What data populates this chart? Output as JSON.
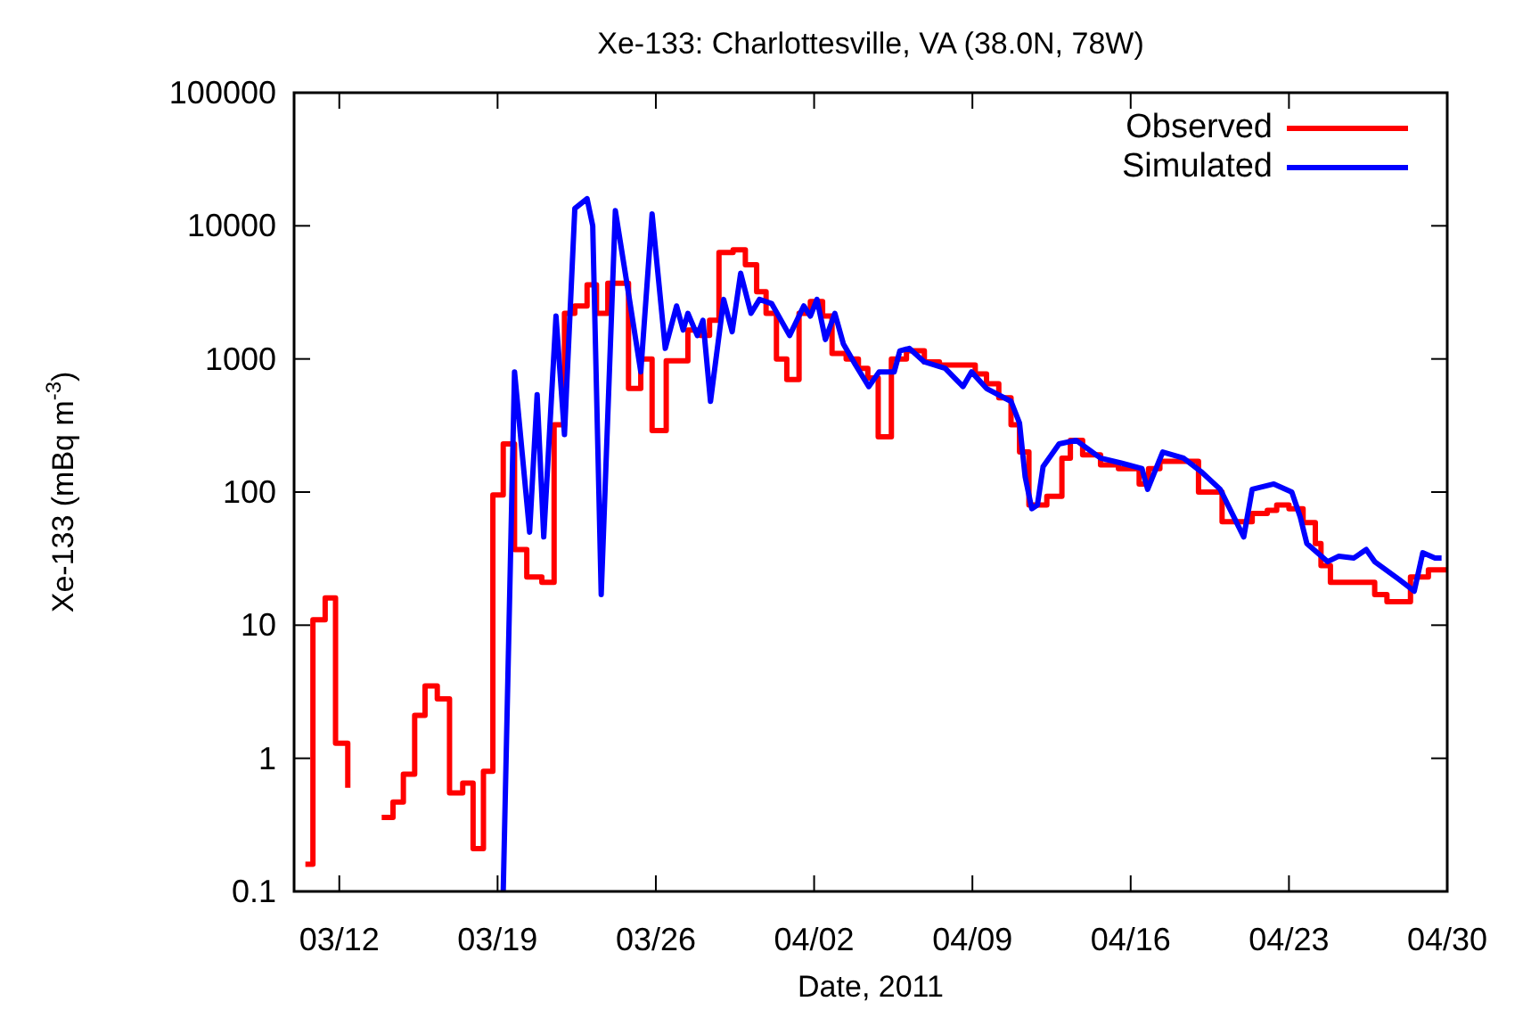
{
  "chart_data": {
    "type": "line",
    "title": "Xe-133: Charlottesville,  VA (38.0N, 78W)",
    "xlabel": "Date, 2011",
    "ylabel": "Xe-133 (mBq m$^{-3}$)",
    "log": "y",
    "grid": false,
    "legend": "top right",
    "marker": "none",
    "line_style": "solid",
    "xlim": [
      "2011-03-10",
      "2011-04-30"
    ],
    "xticks": [
      {
        "value": "2011-03-12",
        "label": "03/12"
      },
      {
        "value": "2011-03-19",
        "label": "03/19"
      },
      {
        "value": "2011-03-26",
        "label": "03/26"
      },
      {
        "value": "2011-04-02",
        "label": "04/02"
      },
      {
        "value": "2011-04-09",
        "label": "04/09"
      },
      {
        "value": "2011-04-16",
        "label": "04/16"
      },
      {
        "value": "2011-04-23",
        "label": "04/23"
      },
      {
        "value": "2011-04-30",
        "label": "04/30"
      }
    ],
    "ylim": [
      0.1,
      100000
    ],
    "yticks": [
      0.1,
      1,
      10,
      100,
      1000,
      10000,
      100000
    ],
    "series": [
      {
        "name": "Observed",
        "type": "step",
        "color": "#ff0000",
        "x": [
          "2011-03-10T12:00",
          "2011-03-10T20:00",
          "2011-03-11T09:00",
          "2011-03-11T20:00",
          "2011-03-12T09:00",
          "2011-03-12T22:00",
          "2011-03-13T21:00",
          "2011-03-14T09:00",
          "2011-03-14T20:00",
          "2011-03-15T08:00",
          "2011-03-15T19:00",
          "2011-03-16T08:00",
          "2011-03-16T21:00",
          "2011-03-17T11:00",
          "2011-03-17T22:00",
          "2011-03-18T09:00",
          "2011-03-18T19:00",
          "2011-03-19T06:00",
          "2011-03-19T18:00",
          "2011-03-20T07:00",
          "2011-03-20T23:00",
          "2011-03-21T12:00",
          "2011-03-21T23:00",
          "2011-03-22T10:00",
          "2011-03-22T23:00",
          "2011-03-23T09:00",
          "2011-03-23T21:00",
          "2011-03-24T19:00",
          "2011-03-25T08:00",
          "2011-03-25T20:00",
          "2011-03-26T11:00",
          "2011-03-27T10:00",
          "2011-03-27T23:00",
          "2011-03-28T09:00",
          "2011-03-28T19:00",
          "2011-03-29T10:00",
          "2011-03-29T23:00",
          "2011-03-30T11:00",
          "2011-03-30T21:00",
          "2011-03-31T08:00",
          "2011-03-31T19:00",
          "2011-04-01T08:00",
          "2011-04-01T20:00",
          "2011-04-02T09:00",
          "2011-04-02T19:00",
          "2011-04-03T10:00",
          "2011-04-03T23:00",
          "2011-04-04T09:00",
          "2011-04-04T20:00",
          "2011-04-05T10:00",
          "2011-04-06T02:00",
          "2011-04-06T21:00",
          "2011-04-07T13:00",
          "2011-04-09T03:00",
          "2011-04-09T15:00",
          "2011-04-10T04:00",
          "2011-04-10T17:00",
          "2011-04-11T02:00",
          "2011-04-11T12:00",
          "2011-04-12T07:00",
          "2011-04-12T23:00",
          "2011-04-13T08:00",
          "2011-04-13T21:00",
          "2011-04-14T16:00",
          "2011-04-15T11:00",
          "2011-04-16T09:00",
          "2011-04-16T19:00",
          "2011-04-17T07:00",
          "2011-04-19T00:00",
          "2011-04-20T01:00",
          "2011-04-21T09:00",
          "2011-04-22T01:00",
          "2011-04-22T11:00",
          "2011-04-23T00:00",
          "2011-04-23T15:00",
          "2011-04-24T04:00",
          "2011-04-24T10:00",
          "2011-04-24T20:00",
          "2011-04-26T19:00",
          "2011-04-27T08:00",
          "2011-04-28T09:00",
          "2011-04-29T04:00",
          "2011-04-30T00:00"
        ],
        "values": [
          0.16,
          11,
          16,
          1.3,
          0.6,
          null,
          0.36,
          0.47,
          0.76,
          2.1,
          3.5,
          2.8,
          0.55,
          0.65,
          0.21,
          0.8,
          95,
          230,
          37,
          23,
          21,
          320,
          2200,
          2500,
          3600,
          2200,
          3700,
          600,
          1000,
          290,
          970,
          1650,
          1500,
          1950,
          6300,
          6600,
          5100,
          3200,
          2200,
          1000,
          700,
          2200,
          2700,
          2100,
          1100,
          1000,
          850,
          720,
          260,
          1000,
          1150,
          950,
          900,
          770,
          650,
          510,
          320,
          200,
          80,
          93,
          180,
          245,
          190,
          160,
          150,
          115,
          150,
          170,
          100,
          60,
          69,
          73,
          80,
          75,
          59,
          41,
          28,
          21,
          17,
          15,
          23,
          26,
          26
        ]
      },
      {
        "name": "Simulated",
        "type": "line",
        "color": "#0000ff",
        "x": [
          "2011-03-19T06:00",
          "2011-03-19T18:00",
          "2011-03-20T10:00",
          "2011-03-20T18:00",
          "2011-03-21T01:00",
          "2011-03-21T14:00",
          "2011-03-21T23:00",
          "2011-03-22T10:00",
          "2011-03-22T23:00",
          "2011-03-23T05:00",
          "2011-03-23T14:00",
          "2011-03-24T05:00",
          "2011-03-24T19:00",
          "2011-03-25T08:00",
          "2011-03-25T20:00",
          "2011-03-26T10:00",
          "2011-03-26T22:00",
          "2011-03-27T05:00",
          "2011-03-27T10:00",
          "2011-03-27T20:00",
          "2011-03-28T02:00",
          "2011-03-28T10:00",
          "2011-03-29T00:00",
          "2011-03-29T09:00",
          "2011-03-29T18:00",
          "2011-03-30T05:00",
          "2011-03-30T14:00",
          "2011-03-31T03:00",
          "2011-03-31T22:00",
          "2011-04-01T13:00",
          "2011-04-01T20:00",
          "2011-04-02T03:00",
          "2011-04-02T12:00",
          "2011-04-02T22:00",
          "2011-04-03T07:00",
          "2011-04-03T20:00",
          "2011-04-04T10:00",
          "2011-04-04T21:00",
          "2011-04-05T13:00",
          "2011-04-05T19:00",
          "2011-04-06T05:00",
          "2011-04-06T21:00",
          "2011-04-07T19:00",
          "2011-04-08T14:00",
          "2011-04-08T23:00",
          "2011-04-09T15:00",
          "2011-04-10T17:00",
          "2011-04-11T02:00",
          "2011-04-11T08:00",
          "2011-04-11T15:00",
          "2011-04-11T21:00",
          "2011-04-12T03:00",
          "2011-04-12T20:00",
          "2011-04-13T14:00",
          "2011-04-14T16:00",
          "2011-04-15T14:00",
          "2011-04-16T12:00",
          "2011-04-16T18:00",
          "2011-04-17T10:00",
          "2011-04-18T08:00",
          "2011-04-19T04:00",
          "2011-04-19T23:00",
          "2011-04-21T00:00",
          "2011-04-21T09:00",
          "2011-04-22T08:00",
          "2011-04-23T03:00",
          "2011-04-23T12:00",
          "2011-04-23T19:00",
          "2011-04-24T17:00",
          "2011-04-25T05:00",
          "2011-04-25T21:00",
          "2011-04-26T10:00",
          "2011-04-26T19:00",
          "2011-04-27T21:00",
          "2011-04-28T13:00",
          "2011-04-28T22:00",
          "2011-04-29T11:00",
          "2011-04-29T18:00"
        ],
        "values": [
          0.1,
          800,
          50,
          540,
          46,
          2100,
          270,
          13500,
          16000,
          10000,
          17,
          13000,
          3100,
          800,
          12300,
          1200,
          2500,
          1650,
          2200,
          1500,
          1950,
          480,
          2800,
          1600,
          4400,
          2200,
          2800,
          2600,
          1500,
          2500,
          2100,
          2800,
          1400,
          2200,
          1300,
          900,
          620,
          800,
          800,
          1150,
          1200,
          950,
          850,
          620,
          800,
          600,
          480,
          330,
          130,
          75,
          80,
          155,
          230,
          245,
          180,
          165,
          150,
          105,
          200,
          180,
          140,
          105,
          46,
          105,
          115,
          100,
          65,
          41,
          30,
          33,
          32,
          37,
          30,
          22,
          18,
          35,
          32,
          32
        ]
      }
    ]
  }
}
